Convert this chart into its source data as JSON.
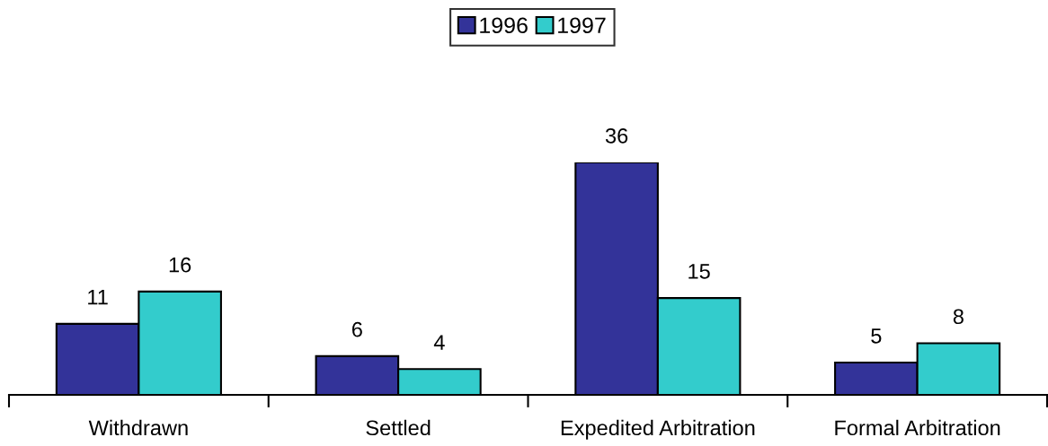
{
  "chart_data": {
    "type": "bar",
    "categories": [
      "Withdrawn",
      "Settled",
      "Expedited Arbitration",
      "Formal Arbitration"
    ],
    "series": [
      {
        "name": "1996",
        "color": "#333399",
        "values": [
          11,
          6,
          36,
          5
        ]
      },
      {
        "name": "1997",
        "color": "#33cccc",
        "values": [
          16,
          4,
          15,
          8
        ]
      }
    ],
    "tick_labels": "x",
    "data_labels": true,
    "legend": "top"
  }
}
